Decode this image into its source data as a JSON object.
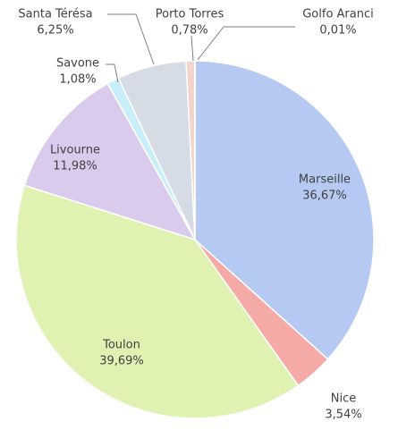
{
  "chart_data": {
    "type": "pie",
    "categories": [
      "Marseille",
      "Nice",
      "Toulon",
      "Livourne",
      "Savone",
      "Santa Térésa",
      "Porto Torres",
      "Golfo Aranci"
    ],
    "values": [
      36.67,
      3.54,
      39.69,
      11.98,
      1.08,
      6.25,
      0.78,
      0.01
    ],
    "value_labels": [
      "36,67%",
      "3,54%",
      "39,69%",
      "11,98%",
      "1,08%",
      "6,25%",
      "0,78%",
      "0,01%"
    ],
    "colors": [
      "#b6c9f2",
      "#f6aaa8",
      "#e0f2b2",
      "#dacbed",
      "#c8eff9",
      "#d6dce5",
      "#f2d4cc",
      "#e8e0d8"
    ]
  }
}
